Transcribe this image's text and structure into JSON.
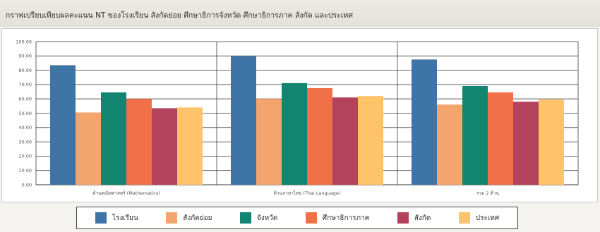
{
  "title": "กราฟเปรียบเทียบผลคะแนน NT ของโรงเรียน สังกัดย่อย ศึกษาธิการจังหวัด ศึกษาธิการภาค สังกัด และประเทศ",
  "chart_data": {
    "type": "bar",
    "title": "กราฟเปรียบเทียบผลคะแนน NT ของโรงเรียน สังกัดย่อย ศึกษาธิการจังหวัด ศึกษาธิการภาค สังกัด และประเทศ",
    "categories": [
      "ด้านคณิตศาสตร์ (Mathematics)",
      "ด้านภาษาไทย (Thai Language)",
      "รวม 2 ด้าน"
    ],
    "series": [
      {
        "name": "โรงเรียน",
        "color": "#3f75a6",
        "values": [
          83.5,
          90.0,
          87.5
        ]
      },
      {
        "name": "สังกัดย่อย",
        "color": "#f4a56e",
        "values": [
          50.5,
          60.0,
          56.0
        ]
      },
      {
        "name": "จังหวัด",
        "color": "#128571",
        "values": [
          64.5,
          71.0,
          69.0
        ]
      },
      {
        "name": "ศึกษาธิการภาค",
        "color": "#f07148",
        "values": [
          60.0,
          67.5,
          64.5
        ]
      },
      {
        "name": "สังกัด",
        "color": "#b4425c",
        "values": [
          53.5,
          61.0,
          58.0
        ]
      },
      {
        "name": "ประเทศ",
        "color": "#ffc46a",
        "values": [
          54.0,
          62.0,
          59.5
        ]
      }
    ],
    "yticks": [
      "0.00",
      "10.00",
      "20.00",
      "30.00",
      "40.00",
      "50.00",
      "60.00",
      "70.00",
      "80.00",
      "90.00",
      "100.00"
    ],
    "ylim": [
      0,
      100
    ],
    "grid": true,
    "legend_position": "bottom"
  }
}
